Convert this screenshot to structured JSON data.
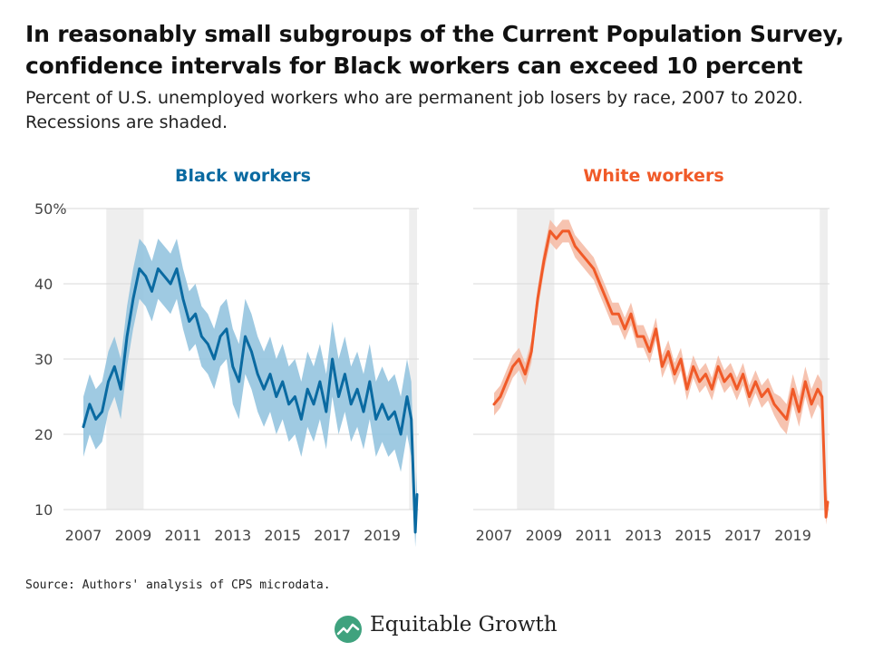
{
  "title": "In reasonably small subgroups of the Current Population Survey, confidence intervals for Black workers can exceed 10 percent",
  "subtitle": "Percent of U.S. unemployed workers who are permanent job losers by race, 2007 to 2020. Recessions are shaded.",
  "source": "Source: Authors' analysis of CPS microdata.",
  "brand": "Equitable Growth",
  "colors": {
    "black_series": "#0a6aa1",
    "black_band": "#8ec1dd",
    "white_series": "#f05a28",
    "white_band": "#f5b8a2",
    "recession": "#eeeeee"
  },
  "chart_data": [
    {
      "type": "line",
      "title": "Black workers",
      "ylim": [
        10,
        50
      ],
      "yticks": [
        10,
        20,
        30,
        40,
        50
      ],
      "ytick_labels": [
        "10",
        "20",
        "30",
        "40",
        "50%"
      ],
      "xlim": [
        2007,
        2020.4
      ],
      "xticks": [
        2007,
        2009,
        2011,
        2013,
        2015,
        2017,
        2019
      ],
      "recessions": [
        [
          2007.92,
          2009.42
        ],
        [
          2020.08,
          2020.4
        ]
      ],
      "grid": true,
      "confidence_band": "shaded",
      "series": [
        {
          "x": [
            2007.0,
            2007.25,
            2007.5,
            2007.75,
            2008.0,
            2008.25,
            2008.5,
            2008.75,
            2009.0,
            2009.25,
            2009.5,
            2009.75,
            2010.0,
            2010.25,
            2010.5,
            2010.75,
            2011.0,
            2011.25,
            2011.5,
            2011.75,
            2012.0,
            2012.25,
            2012.5,
            2012.75,
            2013.0,
            2013.25,
            2013.5,
            2013.75,
            2014.0,
            2014.25,
            2014.5,
            2014.75,
            2015.0,
            2015.25,
            2015.5,
            2015.75,
            2016.0,
            2016.25,
            2016.5,
            2016.75,
            2017.0,
            2017.25,
            2017.5,
            2017.75,
            2018.0,
            2018.25,
            2018.5,
            2018.75,
            2019.0,
            2019.25,
            2019.5,
            2019.75,
            2020.0,
            2020.17,
            2020.33,
            2020.4
          ],
          "values": [
            21,
            24,
            22,
            23,
            27,
            29,
            26,
            33,
            38,
            42,
            41,
            39,
            42,
            41,
            40,
            42,
            38,
            35,
            36,
            33,
            32,
            30,
            33,
            34,
            29,
            27,
            33,
            31,
            28,
            26,
            28,
            25,
            27,
            24,
            25,
            22,
            26,
            24,
            27,
            23,
            30,
            25,
            28,
            24,
            26,
            23,
            27,
            22,
            24,
            22,
            23,
            20,
            25,
            22,
            7,
            12
          ],
          "lower": [
            17,
            20,
            18,
            19,
            23,
            25,
            22,
            29,
            34,
            38,
            37,
            35,
            38,
            37,
            36,
            38,
            34,
            31,
            32,
            29,
            28,
            26,
            29,
            30,
            24,
            22,
            28,
            26,
            23,
            21,
            23,
            20,
            22,
            19,
            20,
            17,
            21,
            19,
            22,
            18,
            25,
            20,
            23,
            19,
            21,
            18,
            22,
            17,
            19,
            17,
            18,
            15,
            20,
            17,
            5,
            9
          ],
          "upper": [
            25,
            28,
            26,
            27,
            31,
            33,
            30,
            37,
            42,
            46,
            45,
            43,
            46,
            45,
            44,
            46,
            42,
            39,
            40,
            37,
            36,
            34,
            37,
            38,
            34,
            32,
            38,
            36,
            33,
            31,
            33,
            30,
            32,
            29,
            30,
            27,
            31,
            29,
            32,
            28,
            35,
            30,
            33,
            29,
            31,
            28,
            32,
            27,
            29,
            27,
            28,
            25,
            30,
            27,
            10,
            15
          ]
        }
      ]
    },
    {
      "type": "line",
      "title": "White workers",
      "ylim": [
        10,
        50
      ],
      "yticks": [
        10,
        20,
        30,
        40,
        50
      ],
      "xlim": [
        2007,
        2020.4
      ],
      "xticks": [
        2007,
        2009,
        2011,
        2013,
        2015,
        2017,
        2019
      ],
      "recessions": [
        [
          2007.92,
          2009.42
        ],
        [
          2020.08,
          2020.4
        ]
      ],
      "grid": true,
      "confidence_band": "shaded",
      "series": [
        {
          "x": [
            2007.0,
            2007.25,
            2007.5,
            2007.75,
            2008.0,
            2008.25,
            2008.5,
            2008.75,
            2009.0,
            2009.25,
            2009.5,
            2009.75,
            2010.0,
            2010.25,
            2010.5,
            2010.75,
            2011.0,
            2011.25,
            2011.5,
            2011.75,
            2012.0,
            2012.25,
            2012.5,
            2012.75,
            2013.0,
            2013.25,
            2013.5,
            2013.75,
            2014.0,
            2014.25,
            2014.5,
            2014.75,
            2015.0,
            2015.25,
            2015.5,
            2015.75,
            2016.0,
            2016.25,
            2016.5,
            2016.75,
            2017.0,
            2017.25,
            2017.5,
            2017.75,
            2018.0,
            2018.25,
            2018.5,
            2018.75,
            2019.0,
            2019.25,
            2019.5,
            2019.75,
            2020.0,
            2020.17,
            2020.33,
            2020.4
          ],
          "values": [
            24,
            25,
            27,
            29,
            30,
            28,
            31,
            38,
            43,
            47,
            46,
            47,
            47,
            45,
            44,
            43,
            42,
            40,
            38,
            36,
            36,
            34,
            36,
            33,
            33,
            31,
            34,
            29,
            31,
            28,
            30,
            26,
            29,
            27,
            28,
            26,
            29,
            27,
            28,
            26,
            28,
            25,
            27,
            25,
            26,
            24,
            23,
            22,
            26,
            23,
            27,
            24,
            26,
            25,
            9,
            11
          ],
          "lower": [
            22.5,
            23.5,
            25.5,
            27.5,
            28.5,
            26.5,
            29.5,
            36.5,
            41.5,
            45.5,
            44.5,
            45.5,
            45.5,
            43.5,
            42.5,
            41.5,
            40.5,
            38.5,
            36.5,
            34.5,
            34.5,
            32.5,
            34.5,
            31.5,
            31.5,
            29.5,
            32.5,
            27.5,
            29.5,
            26.5,
            28.5,
            24.5,
            27.5,
            25.5,
            26.5,
            24.5,
            27.5,
            25.5,
            26.5,
            24.5,
            26.5,
            23.5,
            25.5,
            23.5,
            24.5,
            22.5,
            21,
            20,
            24,
            21,
            25,
            22,
            24,
            23,
            8,
            9.5
          ],
          "upper": [
            25.5,
            26.5,
            28.5,
            30.5,
            31.5,
            29.5,
            32.5,
            39.5,
            44.5,
            48.5,
            47.5,
            48.5,
            48.5,
            46.5,
            45.5,
            44.5,
            43.5,
            41.5,
            39.5,
            37.5,
            37.5,
            35.5,
            37.5,
            34.5,
            34.5,
            32.5,
            35.5,
            30.5,
            32.5,
            29.5,
            31.5,
            27.5,
            30.5,
            28.5,
            29.5,
            27.5,
            30.5,
            28.5,
            29.5,
            27.5,
            29.5,
            26.5,
            28.5,
            26.5,
            27.5,
            25.5,
            25,
            24,
            28,
            25,
            29,
            26,
            28,
            27,
            10,
            12.5
          ]
        }
      ]
    }
  ]
}
